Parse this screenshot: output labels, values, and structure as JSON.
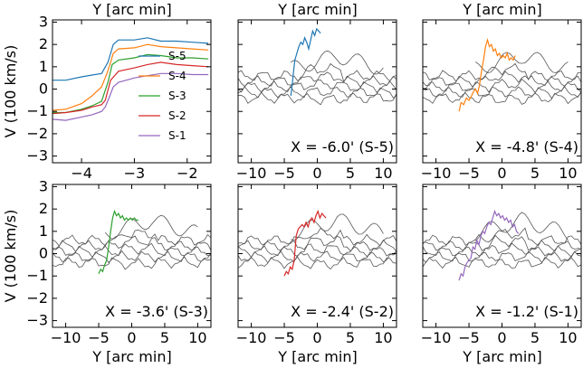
{
  "figure": {
    "y_axis_label": "V (100 km/s)",
    "x_axis_label": "Y [arc min]",
    "top_axis_label": "Y [arc min]"
  },
  "colors": {
    "S-5": "#1f77b4",
    "S-4": "#ff7f0e",
    "S-3": "#2ca02c",
    "S-2": "#d62728",
    "S-1": "#9467bd",
    "contour": "#555555"
  },
  "chart_data": [
    {
      "type": "line",
      "panel": "overlay",
      "xlabel_top": "Y [arc min]",
      "ylabel": "V (100 km/s)",
      "xlim": [
        -4.55,
        -1.55
      ],
      "ylim": [
        -3.3,
        3.1
      ],
      "xticks": [
        -4,
        -3,
        -2
      ],
      "yticks": [
        -3,
        -2,
        -1,
        0,
        1,
        2,
        3
      ],
      "legend": "lower-right",
      "series": [
        {
          "name": "S-5",
          "x": [
            -4.55,
            -4.3,
            -4.0,
            -3.75,
            -3.62,
            -3.5,
            -3.45,
            -3.4,
            -3.3,
            -3.0,
            -2.75,
            -2.5,
            -2.2,
            -1.9,
            -1.6
          ],
          "values": [
            0.4,
            0.4,
            0.55,
            0.65,
            0.7,
            1.2,
            1.6,
            2.0,
            2.2,
            2.2,
            2.3,
            2.15,
            2.15,
            2.1,
            2.05
          ]
        },
        {
          "name": "S-4",
          "x": [
            -4.55,
            -4.3,
            -4.0,
            -3.8,
            -3.62,
            -3.52,
            -3.45,
            -3.4,
            -3.3,
            -3.0,
            -2.75,
            -2.5,
            -2.2,
            -1.9,
            -1.6
          ],
          "values": [
            -0.95,
            -0.9,
            -0.65,
            -0.3,
            0.1,
            0.7,
            1.2,
            1.6,
            1.8,
            1.85,
            2.0,
            1.9,
            1.85,
            1.8,
            1.75
          ]
        },
        {
          "name": "S-3",
          "x": [
            -4.55,
            -4.3,
            -4.0,
            -3.8,
            -3.62,
            -3.5,
            -3.42,
            -3.3,
            -3.0,
            -2.75,
            -2.5,
            -2.2,
            -1.9,
            -1.6
          ],
          "values": [
            -1.05,
            -1.05,
            -0.9,
            -0.75,
            -0.55,
            0.3,
            1.1,
            1.3,
            1.4,
            1.55,
            1.5,
            1.4,
            1.4,
            1.35
          ]
        },
        {
          "name": "S-2",
          "x": [
            -4.55,
            -4.3,
            -4.0,
            -3.8,
            -3.62,
            -3.55,
            -3.45,
            -3.3,
            -3.0,
            -2.75,
            -2.5,
            -2.2,
            -1.9,
            -1.6
          ],
          "values": [
            -1.1,
            -1.05,
            -0.95,
            -0.8,
            -0.7,
            -0.5,
            0.4,
            0.8,
            0.95,
            1.1,
            1.2,
            1.1,
            1.05,
            1.0
          ]
        },
        {
          "name": "S-1",
          "x": [
            -4.55,
            -4.3,
            -4.0,
            -3.8,
            -3.62,
            -3.55,
            -3.48,
            -3.4,
            -3.3,
            -3.0,
            -2.75,
            -2.5,
            -2.2,
            -1.9,
            -1.6
          ],
          "values": [
            -1.35,
            -1.4,
            -1.25,
            -1.15,
            -1.0,
            -0.8,
            -0.4,
            0.1,
            0.3,
            0.5,
            0.6,
            0.7,
            0.7,
            0.65,
            0.65
          ]
        }
      ]
    },
    {
      "type": "line",
      "panel": "S-5",
      "annotation": "X = -6.0' (S-5)",
      "xlim": [
        -12,
        12
      ],
      "ylim": [
        -3.3,
        3.1
      ],
      "xticks": [
        -10,
        -5,
        0,
        5,
        10
      ],
      "series": [
        {
          "x": [
            -4.0,
            -3.8,
            -3.6,
            -3.4,
            -3.1,
            -2.8,
            -2.5,
            -2.2,
            -1.9,
            -1.6,
            -1.3,
            -1.0,
            -0.7,
            -0.4,
            -0.1,
            0.2,
            0.5
          ],
          "values": [
            -0.3,
            0.2,
            0.8,
            1.3,
            1.6,
            1.9,
            2.1,
            2.0,
            2.3,
            2.1,
            1.8,
            2.2,
            2.6,
            2.4,
            2.7,
            2.6,
            2.5
          ]
        }
      ]
    },
    {
      "type": "line",
      "panel": "S-4",
      "annotation": "X = -4.8' (S-4)",
      "xlim": [
        -12,
        12
      ],
      "ylim": [
        -3.3,
        3.1
      ],
      "xticks": [
        -10,
        -5,
        0,
        5,
        10
      ],
      "series": [
        {
          "x": [
            -6.5,
            -6.2,
            -5.8,
            -5.4,
            -5.0,
            -4.6,
            -4.3,
            -4.0,
            -3.7,
            -3.4,
            -3.1,
            -2.8,
            -2.5,
            -2.2,
            -1.9,
            -1.6,
            -1.3,
            -1.0,
            -0.7,
            -0.4,
            -0.1,
            0.2,
            0.5,
            0.8,
            1.1,
            1.4,
            1.7,
            2.0
          ],
          "values": [
            -1.0,
            -0.6,
            -0.7,
            -0.4,
            -0.5,
            -0.3,
            -0.1,
            0.0,
            -0.2,
            0.2,
            0.8,
            1.3,
            1.9,
            2.2,
            1.9,
            2.0,
            1.7,
            1.8,
            1.5,
            1.6,
            1.4,
            1.5,
            1.4,
            1.6,
            1.3,
            1.4,
            1.3,
            1.5
          ]
        }
      ]
    },
    {
      "type": "line",
      "panel": "S-3",
      "annotation": "X = -3.6' (S-3)",
      "xlim": [
        -12,
        12
      ],
      "ylim": [
        -3.3,
        3.1
      ],
      "xticks": [
        -10,
        -5,
        0,
        5,
        10
      ],
      "series": [
        {
          "x": [
            -5.0,
            -4.7,
            -4.4,
            -4.1,
            -3.8,
            -3.5,
            -3.2,
            -2.9,
            -2.6,
            -2.3,
            -2.0,
            -1.7,
            -1.4,
            -1.1,
            -0.8,
            -0.5,
            -0.2,
            0.1,
            0.4,
            0.7,
            1.0
          ],
          "values": [
            -0.9,
            -0.7,
            -0.8,
            -0.5,
            -0.3,
            0.3,
            1.0,
            1.6,
            1.9,
            1.7,
            1.8,
            1.6,
            1.7,
            1.5,
            1.6,
            1.5,
            1.6,
            1.5,
            1.6,
            1.5,
            1.5
          ]
        }
      ]
    },
    {
      "type": "line",
      "panel": "S-2",
      "annotation": "X = -2.4' (S-2)",
      "xlim": [
        -12,
        12
      ],
      "ylim": [
        -3.3,
        3.1
      ],
      "xticks": [
        -10,
        -5,
        0,
        5,
        10
      ],
      "series": [
        {
          "x": [
            -5.0,
            -4.7,
            -4.4,
            -4.1,
            -3.8,
            -3.5,
            -3.2,
            -2.9,
            -2.6,
            -2.3,
            -2.0,
            -1.7,
            -1.4,
            -1.1,
            -0.8,
            -0.5,
            -0.2,
            0.1,
            0.4,
            0.7,
            1.0,
            1.3
          ],
          "values": [
            -1.0,
            -0.8,
            -0.9,
            -0.6,
            -0.7,
            -0.3,
            0.8,
            1.1,
            1.2,
            1.3,
            1.2,
            1.4,
            1.2,
            1.5,
            1.6,
            1.4,
            1.7,
            1.9,
            1.6,
            1.8,
            1.7,
            1.6
          ]
        }
      ]
    },
    {
      "type": "line",
      "panel": "S-1",
      "annotation": "X = -1.2' (S-1)",
      "xlim": [
        -12,
        12
      ],
      "ylim": [
        -3.3,
        3.1
      ],
      "xticks": [
        -10,
        -5,
        0,
        5,
        10
      ],
      "series": [
        {
          "x": [
            -6.5,
            -6.2,
            -5.9,
            -5.6,
            -5.3,
            -5.0,
            -4.7,
            -4.4,
            -4.1,
            -3.8,
            -3.5,
            -3.2,
            -2.9,
            -2.6,
            -2.3,
            -2.0,
            -1.7,
            -1.4,
            -1.1,
            -0.8,
            -0.5,
            -0.2,
            0.1,
            0.4,
            0.7,
            1.0,
            1.3,
            1.6,
            1.9,
            2.2,
            2.5
          ],
          "values": [
            -1.2,
            -0.9,
            -1.0,
            -0.6,
            -0.4,
            -0.3,
            -0.2,
            0.3,
            0.2,
            0.6,
            0.4,
            0.8,
            1.0,
            0.9,
            1.2,
            1.4,
            1.3,
            1.6,
            1.9,
            1.7,
            1.8,
            1.6,
            1.7,
            1.5,
            1.6,
            1.4,
            1.5,
            1.2,
            1.3,
            1.0,
            0.9
          ]
        }
      ]
    }
  ]
}
